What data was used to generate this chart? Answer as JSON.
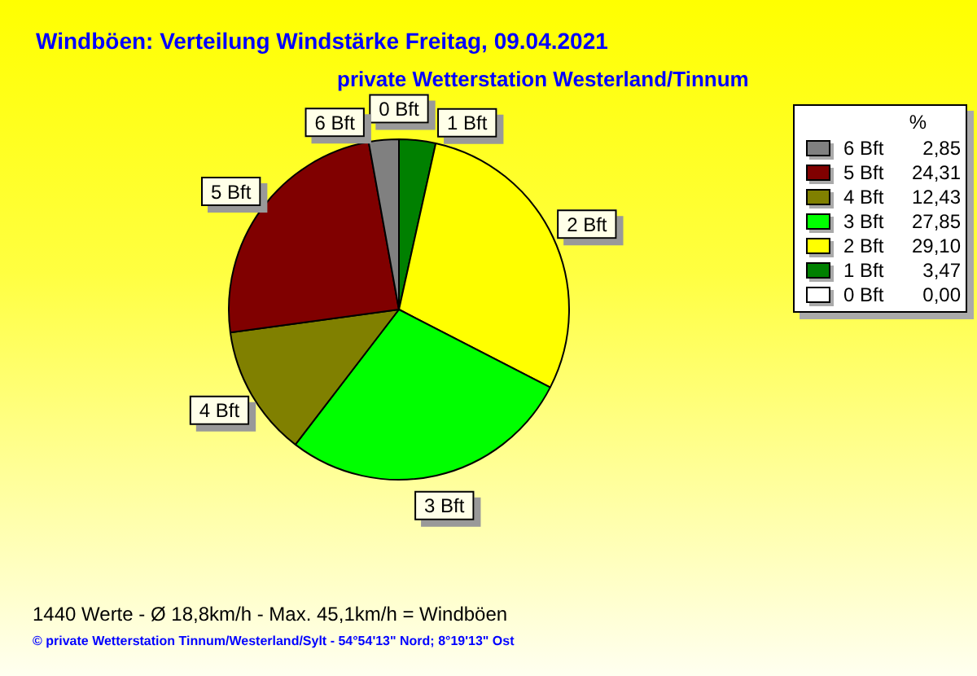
{
  "chart_data": {
    "type": "pie",
    "title": "Windböen: Verteilung Windstärke  Freitag, 09.04.2021",
    "subtitle": "private Wetterstation Westerland/Tinnum",
    "legend_title": "%",
    "legend": "top right",
    "categories": [
      "6 Bft",
      "5 Bft",
      "4 Bft",
      "3 Bft",
      "2 Bft",
      "1 Bft",
      "0 Bft"
    ],
    "values": [
      2.85,
      24.31,
      12.43,
      27.85,
      29.1,
      3.47,
      0.0
    ],
    "value_labels": [
      "2,85",
      "24,31",
      "12,43",
      "27,85",
      "29,10",
      "3,47",
      "0,00"
    ],
    "colors": [
      "#808080",
      "#800000",
      "#808000",
      "#00ff00",
      "#ffff00",
      "#008000",
      "#ffffff"
    ],
    "annotations": [
      "1440 Werte   -   Ø 18,8km/h  -  Max. 45,1km/h = Windböen",
      "© private Wetterstation Tinnum/Westerland/Sylt   -   54°54'13\" Nord; 8°19'13\" Ost"
    ]
  }
}
